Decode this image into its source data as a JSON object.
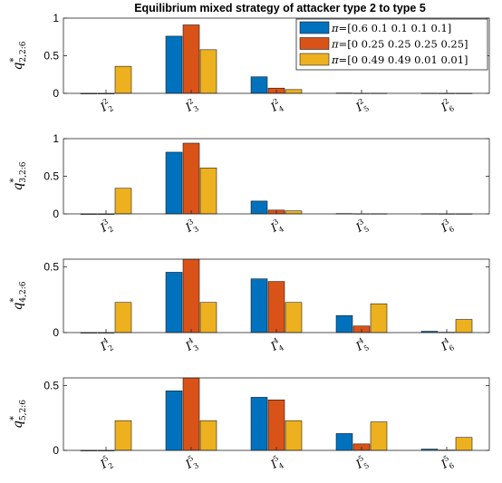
{
  "chart_data": {
    "type": "bar",
    "title": "Equilibrium mixed strategy of attacker type 2 to type 5",
    "legend": {
      "placement": "top-right",
      "prefix": "π=",
      "entries": [
        "[0.6 0.1 0.1 0.1 0.1]",
        "[0 0.25 0.25 0.25 0.25]",
        "[0 0.49 0.49 0.01 0.01]"
      ]
    },
    "colors": [
      "#0072BD",
      "#D95319",
      "#EDB120"
    ],
    "panels": [
      {
        "ylabel": {
          "base": "q",
          "sup": "*",
          "sub": "2,2:6"
        },
        "ylim": [
          0,
          1
        ],
        "yticks": [
          "0",
          "0.5",
          "1"
        ],
        "category_base": "I",
        "category_sup": "2",
        "categories": [
          "2",
          "3",
          "4",
          "5",
          "6"
        ],
        "series": [
          {
            "values": [
              0.0,
              0.76,
              0.22,
              0.005,
              0.003
            ]
          },
          {
            "values": [
              0.0,
              0.91,
              0.07,
              0.003,
              0.002
            ]
          },
          {
            "values": [
              0.36,
              0.58,
              0.05,
              0.003,
              0.002
            ]
          }
        ]
      },
      {
        "ylabel": {
          "base": "q",
          "sup": "*",
          "sub": "3,2:6"
        },
        "ylim": [
          0,
          1
        ],
        "yticks": [
          "0",
          "0.5",
          "1"
        ],
        "category_base": "I",
        "category_sup": "3",
        "categories": [
          "2",
          "3",
          "4",
          "5",
          "6"
        ],
        "series": [
          {
            "values": [
              0.0,
              0.82,
              0.17,
              0.005,
              0.003
            ]
          },
          {
            "values": [
              0.0,
              0.94,
              0.05,
              0.003,
              0.002
            ]
          },
          {
            "values": [
              0.34,
              0.61,
              0.04,
              0.003,
              0.002
            ]
          }
        ]
      },
      {
        "ylabel": {
          "base": "q",
          "sup": "*",
          "sub": "4,2:6"
        },
        "ylim": [
          0,
          0.56
        ],
        "yticks": [
          "0",
          "0.5"
        ],
        "category_base": "I",
        "category_sup": "4",
        "categories": [
          "2",
          "3",
          "4",
          "5",
          "6"
        ],
        "series": [
          {
            "values": [
              0.0,
              0.46,
              0.41,
              0.13,
              0.01
            ]
          },
          {
            "values": [
              0.0,
              0.56,
              0.39,
              0.05,
              0.003
            ]
          },
          {
            "values": [
              0.23,
              0.23,
              0.23,
              0.22,
              0.1
            ]
          }
        ]
      },
      {
        "ylabel": {
          "base": "q",
          "sup": "*",
          "sub": "5,2:6"
        },
        "ylim": [
          0,
          0.56
        ],
        "yticks": [
          "0",
          "0.5"
        ],
        "category_base": "I",
        "category_sup": "5",
        "categories": [
          "2",
          "3",
          "4",
          "5",
          "6"
        ],
        "series": [
          {
            "values": [
              0.0,
              0.46,
              0.41,
              0.13,
              0.01
            ]
          },
          {
            "values": [
              0.0,
              0.56,
              0.39,
              0.05,
              0.003
            ]
          },
          {
            "values": [
              0.23,
              0.23,
              0.23,
              0.22,
              0.1
            ]
          }
        ]
      }
    ]
  }
}
